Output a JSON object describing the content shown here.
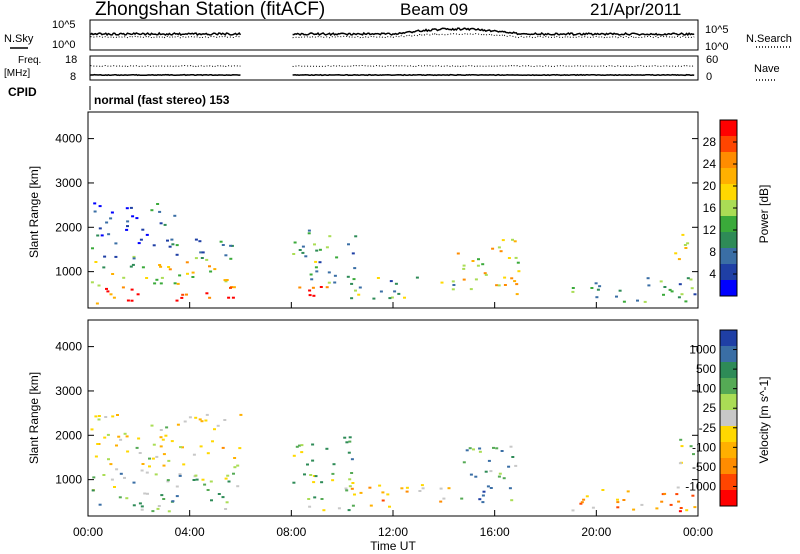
{
  "header": {
    "station": "Zhongshan Station (fitACF)",
    "beam": "Beam 09",
    "date": "21/Apr/2011"
  },
  "noise_panel": {
    "left_label": "N.Sky",
    "right_label": "N.Search",
    "left_ticks": [
      "10^5",
      "10^0"
    ],
    "right_ticks": [
      "10^5",
      "10^0"
    ]
  },
  "freq_panel": {
    "left_label_1": "Freq.",
    "left_label_2": "[MHz]",
    "right_label": "Nave",
    "left_ticks": [
      "18",
      "8"
    ],
    "right_ticks": [
      "60",
      "0"
    ]
  },
  "cpid": {
    "label": "CPID",
    "value": "normal (fast stereo) 153"
  },
  "chart_data": [
    {
      "type": "heatmap",
      "name": "power",
      "ylabel": "Slant Range [km]",
      "y_ticks": [
        "1000",
        "2000",
        "3000",
        "4000"
      ],
      "y_tick_values": [
        1000,
        2000,
        3000,
        4000
      ],
      "ylim": [
        180,
        4600
      ],
      "colorbar_label": "Power [dB]",
      "colorbar_ticks": [
        "28",
        "24",
        "20",
        "16",
        "12",
        "8",
        "4"
      ],
      "colorbar_colors": [
        "#ff0000",
        "#ff4500",
        "#ff8c00",
        "#ffb000",
        "#ffd800",
        "#aadd55",
        "#3aaa3a",
        "#2e8b57",
        "#3a6ea5",
        "#1f3fa5",
        "#0000ff"
      ],
      "clusters": [
        {
          "x0": 0.1,
          "x1": 6.0,
          "y0": 300,
          "y1": 700,
          "v": 0.9
        },
        {
          "x0": 0.1,
          "x1": 6.0,
          "y0": 700,
          "y1": 1300,
          "v": 0.55
        },
        {
          "x0": 0.1,
          "x1": 6.0,
          "y0": 1300,
          "y1": 1800,
          "v": 0.25
        },
        {
          "x0": 0.1,
          "x1": 3.5,
          "y0": 1800,
          "y1": 2600,
          "v": 0.15
        },
        {
          "x0": 8.0,
          "x1": 10.0,
          "y0": 300,
          "y1": 700,
          "v": 0.95
        },
        {
          "x0": 8.0,
          "x1": 10.5,
          "y0": 700,
          "y1": 2000,
          "v": 0.35
        },
        {
          "x0": 10.0,
          "x1": 14.5,
          "y0": 400,
          "y1": 900,
          "v": 0.4
        },
        {
          "x0": 14.5,
          "x1": 17.0,
          "y0": 500,
          "y1": 1800,
          "v": 0.6
        },
        {
          "x0": 19.0,
          "x1": 23.9,
          "y0": 300,
          "y1": 900,
          "v": 0.3
        },
        {
          "x0": 23.0,
          "x1": 23.9,
          "y0": 1300,
          "y1": 2000,
          "v": 0.7
        }
      ]
    },
    {
      "type": "heatmap",
      "name": "velocity",
      "ylabel": "Slant Range [km]",
      "xlabel": "Time UT",
      "x_ticks": [
        "00:00",
        "04:00",
        "08:00",
        "12:00",
        "16:00",
        "20:00",
        "00:00"
      ],
      "x_tick_values": [
        0,
        4,
        8,
        12,
        16,
        20,
        24
      ],
      "xlim": [
        0,
        24
      ],
      "y_ticks": [
        "1000",
        "2000",
        "3000",
        "4000"
      ],
      "y_tick_values": [
        1000,
        2000,
        3000,
        4000
      ],
      "ylim": [
        180,
        4600
      ],
      "colorbar_label": "Velocity [m s^-1]",
      "colorbar_ticks": [
        "1000",
        "500",
        "100",
        "25",
        "-25",
        "-100",
        "-500",
        "-1000"
      ],
      "colorbar_colors": [
        "#1f3fa5",
        "#3a6ea5",
        "#2e8b57",
        "#55aa55",
        "#aadd55",
        "#c8c8c8",
        "#ffd800",
        "#ffb000",
        "#ff8c00",
        "#ff4500",
        "#ff0000"
      ],
      "clusters": [
        {
          "x0": 0.1,
          "x1": 6.0,
          "y0": 300,
          "y1": 1300,
          "v": 0.65
        },
        {
          "x0": 0.1,
          "x1": 6.0,
          "y0": 1300,
          "y1": 2500,
          "v": 0.45
        },
        {
          "x0": 8.0,
          "x1": 10.5,
          "y0": 300,
          "y1": 2000,
          "v": 0.6
        },
        {
          "x0": 10.0,
          "x1": 14.5,
          "y0": 400,
          "y1": 900,
          "v": 0.35
        },
        {
          "x0": 14.5,
          "x1": 17.0,
          "y0": 500,
          "y1": 1800,
          "v": 0.75
        },
        {
          "x0": 19.0,
          "x1": 23.9,
          "y0": 300,
          "y1": 900,
          "v": 0.3
        },
        {
          "x0": 23.0,
          "x1": 23.9,
          "y0": 1300,
          "y1": 2000,
          "v": 0.6
        }
      ]
    }
  ]
}
